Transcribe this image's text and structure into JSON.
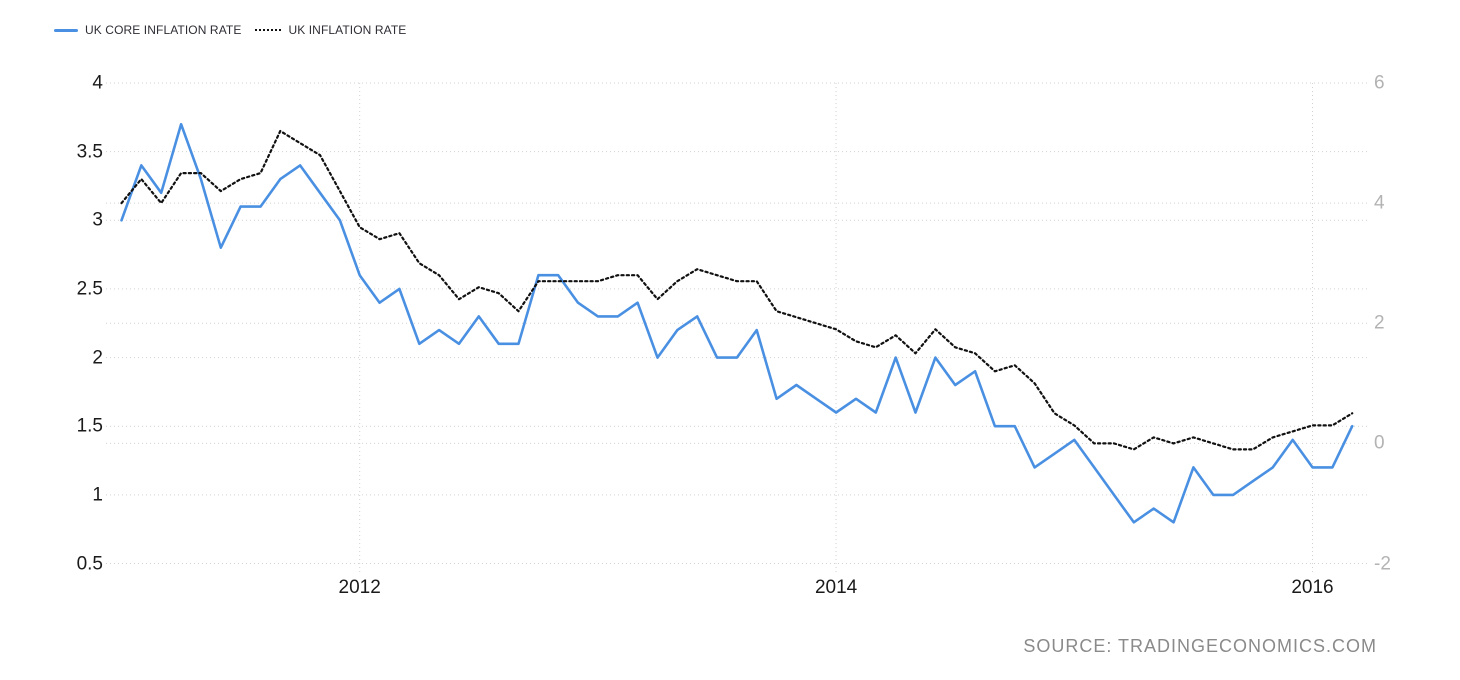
{
  "legend": {
    "items": [
      {
        "label": "UK CORE INFLATION RATE",
        "line_style": "solid",
        "color": "#4a90e2"
      },
      {
        "label": "UK INFLATION RATE",
        "line_style": "dotted",
        "color": "#111111"
      }
    ]
  },
  "source": {
    "text": "SOURCE: TRADINGECONOMICS.COM"
  },
  "colors": {
    "core_line": "#4a90e2",
    "inflation_line": "#111111",
    "grid": "#d2d2d2",
    "axis_left_text": "#1a1a1a",
    "axis_right_text": "#b3b3b3",
    "source_text": "#8a8a8a",
    "background": "#ffffff"
  },
  "chart_data": {
    "type": "line",
    "title": "",
    "x_unit": "month",
    "x_start": "2011-01",
    "x_end": "2016-03",
    "x_ticks": [
      {
        "label": "2012",
        "month_index": 12
      },
      {
        "label": "2014",
        "month_index": 36
      },
      {
        "label": "2016",
        "month_index": 60
      }
    ],
    "left_axis": {
      "ticks": [
        "4",
        "3.5",
        "3",
        "2.5",
        "2",
        "1.5",
        "1",
        "0.5"
      ],
      "min": 0.5,
      "max": 4
    },
    "right_axis": {
      "ticks": [
        "6",
        "4",
        "2",
        "0",
        "-2"
      ],
      "min": -2,
      "max": 6
    },
    "grid": "dotted",
    "legend_position": "top-left",
    "series": [
      {
        "name": "UK CORE INFLATION RATE",
        "axis": "left",
        "style": "solid",
        "color": "#4a90e2",
        "values": [
          3.0,
          3.4,
          3.2,
          3.7,
          3.3,
          2.8,
          3.1,
          3.1,
          3.3,
          3.4,
          3.2,
          3.0,
          2.6,
          2.4,
          2.5,
          2.1,
          2.2,
          2.1,
          2.3,
          2.1,
          2.1,
          2.6,
          2.6,
          2.4,
          2.3,
          2.3,
          2.4,
          2.0,
          2.2,
          2.3,
          2.0,
          2.0,
          2.2,
          1.7,
          1.8,
          1.7,
          1.6,
          1.7,
          1.6,
          2.0,
          1.6,
          2.0,
          1.8,
          1.9,
          1.5,
          1.5,
          1.2,
          1.3,
          1.4,
          1.2,
          1.0,
          0.8,
          0.9,
          0.8,
          1.2,
          1.0,
          1.0,
          1.1,
          1.2,
          1.4,
          1.2,
          1.2,
          1.5
        ]
      },
      {
        "name": "UK INFLATION RATE",
        "axis": "right",
        "style": "dotted",
        "color": "#111111",
        "values": [
          4.0,
          4.4,
          4.0,
          4.5,
          4.5,
          4.2,
          4.4,
          4.5,
          5.2,
          5.0,
          4.8,
          4.2,
          3.6,
          3.4,
          3.5,
          3.0,
          2.8,
          2.4,
          2.6,
          2.5,
          2.2,
          2.7,
          2.7,
          2.7,
          2.7,
          2.8,
          2.8,
          2.4,
          2.7,
          2.9,
          2.8,
          2.7,
          2.7,
          2.2,
          2.1,
          2.0,
          1.9,
          1.7,
          1.6,
          1.8,
          1.5,
          1.9,
          1.6,
          1.5,
          1.2,
          1.3,
          1.0,
          0.5,
          0.3,
          0.0,
          0.0,
          -0.1,
          0.1,
          0.0,
          0.1,
          0.0,
          -0.1,
          -0.1,
          0.1,
          0.2,
          0.3,
          0.3,
          0.5
        ]
      }
    ]
  }
}
